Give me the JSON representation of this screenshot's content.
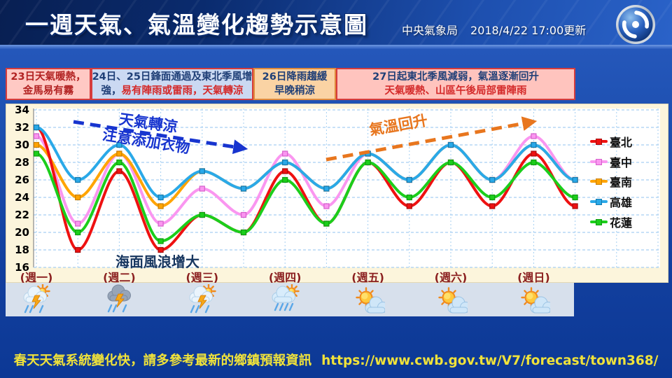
{
  "header": {
    "title": "一週天氣、氣溫變化趨勢示意圖",
    "agency": "中央氣象局",
    "updated": "2018/4/22  17:00更新",
    "logo": "cwb-typhoon-swirl-logo"
  },
  "info_boxes": [
    {
      "bg": "#ffc9c4",
      "border": "#d63c3c",
      "lines": [
        [
          {
            "t": "23日天氣暖熱，",
            "c": "#b22222"
          }
        ],
        [
          {
            "t": "金馬易有霧",
            "c": "#b22222"
          }
        ]
      ]
    },
    {
      "bg": "#cbd9f2",
      "border": "#d63c3c",
      "lines": [
        [
          {
            "t": "24日、25日鋒面通過及東北季風增",
            "c": "#1f3f77"
          }
        ],
        [
          {
            "t": "強，",
            "c": "#1f3f77"
          },
          {
            "t": "易有陣雨或雷雨，天氣轉涼",
            "c": "#d42a2a"
          }
        ]
      ]
    },
    {
      "bg": "#fad3a4",
      "border": "#e08a3c",
      "lines": [
        [
          {
            "t": "26日降雨趨緩",
            "c": "#1f3f77"
          }
        ],
        [
          {
            "t": "早晚稍涼",
            "c": "#1f3f77"
          }
        ]
      ]
    },
    {
      "bg": "#ffc4be",
      "border": "#d63c3c",
      "lines": [
        [
          {
            "t": "27日起東北季風減弱，氣溫逐漸回升",
            "c": "#1f3f77"
          }
        ],
        [
          {
            "t": "天氣暖熱、山區午後局部雷陣雨",
            "c": "#d42a2a"
          }
        ]
      ]
    }
  ],
  "chart_data": {
    "type": "line",
    "x_labels": [
      "(週一)",
      "(週二)",
      "(週三)",
      "(週四)",
      "(週五)",
      "(週六)",
      "(週日)"
    ],
    "points_per_day": 2,
    "x_note": "14 points = daytime high and overnight low for each of 7 days",
    "ylim": [
      16,
      34
    ],
    "ytick_step": 2,
    "grid": true,
    "legend_position": "right",
    "series": [
      {
        "name": "臺北",
        "color": "#ee1111",
        "marker_stroke": "#a80c0c",
        "values": [
          32,
          18,
          27,
          18,
          22,
          20,
          27,
          21,
          28,
          23,
          28,
          23,
          29,
          23
        ]
      },
      {
        "name": "臺中",
        "color": "#fa96f0",
        "marker_stroke": "#d55fcb",
        "values": [
          31,
          21,
          29,
          21,
          25,
          22,
          29,
          23,
          29,
          26,
          30,
          26,
          31,
          26
        ]
      },
      {
        "name": "臺南",
        "color": "#ffa400",
        "marker_stroke": "#c87e00",
        "values": [
          30,
          24,
          29,
          23,
          27,
          25,
          28,
          25,
          29,
          26,
          30,
          26,
          30,
          26
        ]
      },
      {
        "name": "高雄",
        "color": "#2aa9e8",
        "marker_stroke": "#1679ad",
        "values": [
          32,
          26,
          30,
          24,
          27,
          25,
          28,
          25,
          29,
          26,
          30,
          26,
          30,
          26
        ]
      },
      {
        "name": "花蓮",
        "color": "#1bce1b",
        "marker_stroke": "#0f9a0f",
        "values": [
          29,
          20,
          28,
          19,
          22,
          20,
          26,
          21,
          28,
          24,
          28,
          24,
          28,
          24
        ]
      }
    ],
    "annotations": [
      {
        "id": "cooling",
        "text_lines": [
          "天氣轉涼",
          "注意添加衣物"
        ],
        "color": "#1734cf",
        "arrow": "dashed-right-down"
      },
      {
        "id": "warming",
        "text_lines": [
          "氣溫回升"
        ],
        "color": "#e8761e",
        "arrow": "dashed-right-up"
      },
      {
        "id": "sea-waves",
        "text_lines": [
          "海面風浪增大"
        ],
        "color": "#16355e",
        "arrow": "none"
      }
    ]
  },
  "weather_icons": [
    {
      "day": "(週一)",
      "type": "sun-cloud-thunder-rain",
      "name": "thunderstorm-with-sun-icon"
    },
    {
      "day": "(週二)",
      "type": "dark-cloud-thunder-rain",
      "name": "thunderstorm-icon"
    },
    {
      "day": "(週三)",
      "type": "sun-cloud-thunder-rain",
      "name": "thunderstorm-with-sun-icon"
    },
    {
      "day": "(週四)",
      "type": "sun-cloud-rain",
      "name": "rain-with-sun-icon"
    },
    {
      "day": "(週五)",
      "type": "sun-small-cloud",
      "name": "mostly-sunny-icon"
    },
    {
      "day": "(週六)",
      "type": "sun-small-cloud",
      "name": "mostly-sunny-icon"
    },
    {
      "day": "(週日)",
      "type": "sun-small-cloud",
      "name": "mostly-sunny-icon"
    }
  ],
  "footer": {
    "note": "春天天氣系統變化快，請多參考最新的鄉鎮預報資訊",
    "url": "https://www.cwb.gov.tw/V7/forecast/town368/"
  },
  "colors": {
    "panel_bg": "#fcf5dc",
    "plot_bg": "#ffffff",
    "grid": "#a6cff2",
    "icon_band": "#d7e0ec",
    "axis_label": "#8b2020",
    "footer_text": "#f0e23a"
  }
}
